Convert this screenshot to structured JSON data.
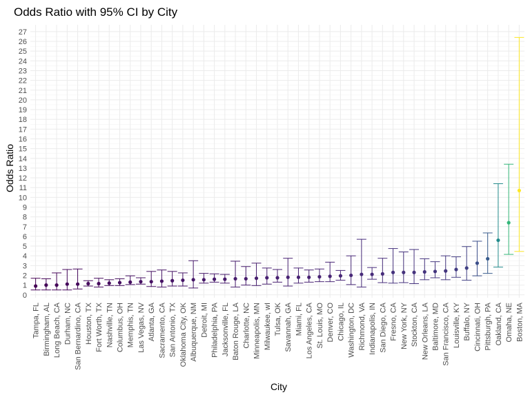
{
  "chart_data": {
    "type": "errorbar",
    "title": "Odds Ratio with 95% CI by City",
    "xlabel": "City",
    "ylabel": "Odds Ratio",
    "ylim": [
      -0.3,
      27.7
    ],
    "yticks": [
      0,
      1,
      2,
      3,
      4,
      5,
      6,
      7,
      8,
      9,
      10,
      11,
      12,
      13,
      14,
      15,
      16,
      17,
      18,
      19,
      20,
      21,
      22,
      23,
      24,
      25,
      26,
      27
    ],
    "grid": true,
    "legend": "none",
    "color_scale": "viridis",
    "cities": [
      "Tampa, FL",
      "Birmingham, AL",
      "Long Beach, CA",
      "Durham, NC",
      "San Bernardino, CA",
      "Houston, TX",
      "Fort Worth, TX",
      "Nashville, TN",
      "Columbus, OH",
      "Memphis, TN",
      "Las Vegas, NV",
      "Atlanta, GA",
      "Sacramento, CA",
      "San Antonio, TX",
      "Oklahoma City, OK",
      "Albuquerque, NM",
      "Detroit, MI",
      "Philadelphia, PA",
      "Jacksonville, FL",
      "Baton Rouge, LA",
      "Charlotte, NC",
      "Minneapolis, MN",
      "Milwaukee, wI",
      "Tulsa, OK",
      "Savannah, GA",
      "Miami, FL",
      "Los Angeles, CA",
      "St. Louis, MO",
      "Denver, CO",
      "Chicago, IL",
      "Washington, DC",
      "Richmond, VA",
      "Indianapolis, IN",
      "San Diego, CA",
      "Fresno, CA",
      "New York, NY",
      "Stockton, CA",
      "New Orleans, LA",
      "Baltimore, MD",
      "San Francisco, CA",
      "Louisville, KY",
      "Buffalo, NY",
      "Cincinnati, OH",
      "Pittsburgh, PA",
      "Oakland, CA",
      "Omaha, NE",
      "Boston, MA"
    ],
    "or": [
      0.9,
      1.0,
      1.0,
      1.1,
      1.1,
      1.15,
      1.15,
      1.2,
      1.25,
      1.3,
      1.35,
      1.35,
      1.4,
      1.45,
      1.5,
      1.55,
      1.55,
      1.6,
      1.6,
      1.65,
      1.65,
      1.7,
      1.75,
      1.75,
      1.8,
      1.8,
      1.8,
      1.85,
      1.9,
      1.95,
      2.0,
      2.1,
      2.1,
      2.15,
      2.3,
      2.3,
      2.3,
      2.35,
      2.4,
      2.45,
      2.6,
      2.75,
      3.25,
      3.7,
      5.6,
      7.4,
      10.7
    ],
    "lower": [
      0.5,
      0.5,
      0.5,
      0.5,
      0.6,
      0.9,
      0.8,
      0.95,
      0.95,
      1.05,
      1.1,
      0.85,
      0.8,
      0.9,
      0.9,
      0.7,
      1.2,
      1.3,
      1.2,
      0.8,
      1.0,
      0.95,
      1.1,
      1.3,
      0.9,
      1.2,
      1.3,
      1.35,
      1.35,
      1.5,
      1.05,
      0.8,
      1.6,
      1.25,
      1.2,
      1.25,
      1.15,
      1.55,
      1.75,
      1.55,
      1.8,
      1.5,
      1.95,
      2.2,
      2.85,
      4.15,
      4.45
    ],
    "upper": [
      1.7,
      1.65,
      2.25,
      2.6,
      2.65,
      1.45,
      1.7,
      1.55,
      1.65,
      1.95,
      1.75,
      2.4,
      2.55,
      2.4,
      2.25,
      3.5,
      2.2,
      2.15,
      2.1,
      3.45,
      2.9,
      3.25,
      2.75,
      2.6,
      3.75,
      2.75,
      2.55,
      2.65,
      3.35,
      2.5,
      4.0,
      5.7,
      2.8,
      3.75,
      4.75,
      4.4,
      4.65,
      3.7,
      3.4,
      4.0,
      3.9,
      4.95,
      5.5,
      6.35,
      11.4,
      13.4,
      26.4
    ]
  }
}
